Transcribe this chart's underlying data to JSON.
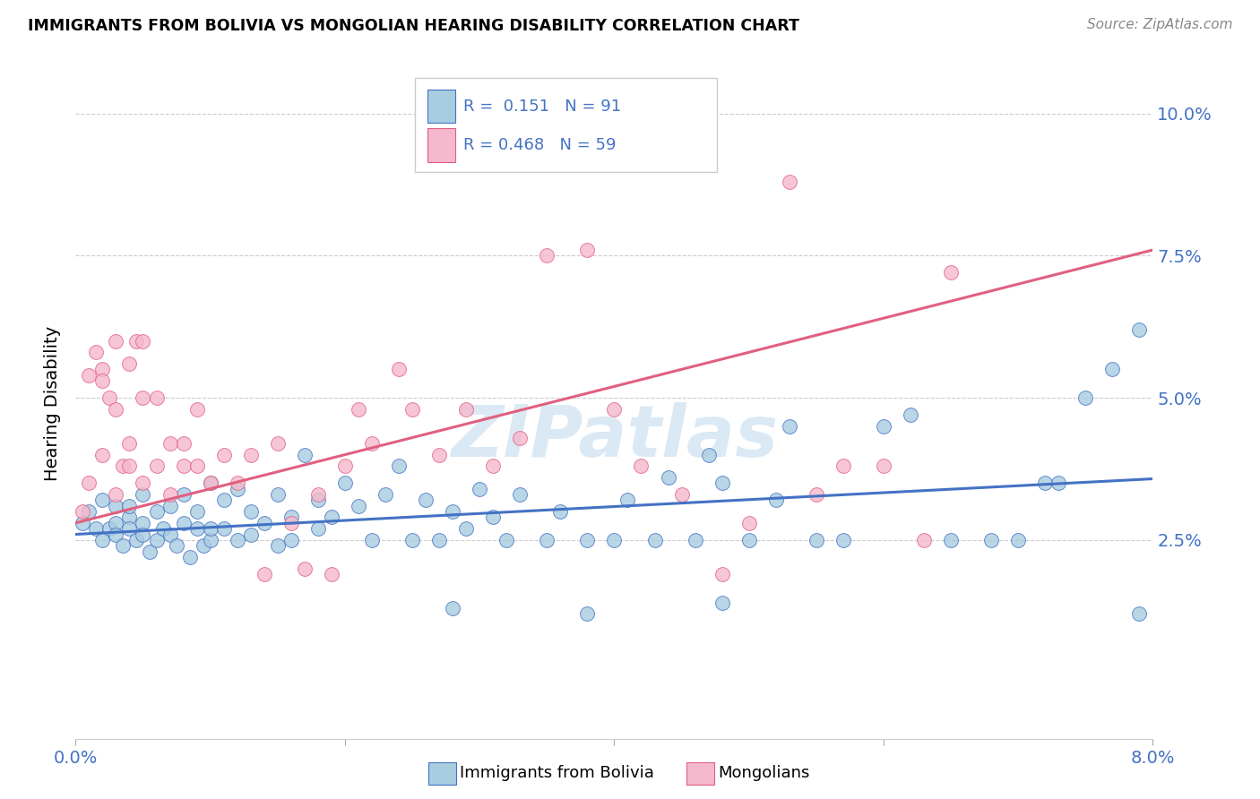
{
  "title": "IMMIGRANTS FROM BOLIVIA VS MONGOLIAN HEARING DISABILITY CORRELATION CHART",
  "source": "Source: ZipAtlas.com",
  "ylabel": "Hearing Disability",
  "legend_label1": "Immigrants from Bolivia",
  "legend_label2": "Mongolians",
  "R1": "0.151",
  "N1": "91",
  "R2": "0.468",
  "N2": "59",
  "color_blue": "#a8cce0",
  "color_pink": "#f5b8cc",
  "line_color_blue": "#4472c4",
  "line_color_pink": "#e06080",
  "tick_color": "#4472c4",
  "watermark_color": "#b8d4ea",
  "xlim": [
    0.0,
    0.08
  ],
  "ylim": [
    -0.01,
    0.108
  ],
  "yticks": [
    0.025,
    0.05,
    0.075,
    0.1
  ],
  "ytick_labels": [
    "2.5%",
    "5.0%",
    "7.5%",
    "10.0%"
  ],
  "blue_slope": 0.122,
  "blue_intercept": 0.026,
  "pink_slope": 0.6,
  "pink_intercept": 0.028,
  "blue_x": [
    0.0005,
    0.001,
    0.0015,
    0.002,
    0.002,
    0.0025,
    0.003,
    0.003,
    0.003,
    0.0035,
    0.004,
    0.004,
    0.004,
    0.0045,
    0.005,
    0.005,
    0.005,
    0.0055,
    0.006,
    0.006,
    0.0065,
    0.007,
    0.007,
    0.0075,
    0.008,
    0.008,
    0.0085,
    0.009,
    0.009,
    0.0095,
    0.01,
    0.01,
    0.01,
    0.011,
    0.011,
    0.012,
    0.012,
    0.013,
    0.013,
    0.014,
    0.015,
    0.015,
    0.016,
    0.016,
    0.017,
    0.018,
    0.018,
    0.019,
    0.02,
    0.021,
    0.022,
    0.023,
    0.024,
    0.025,
    0.026,
    0.027,
    0.028,
    0.029,
    0.03,
    0.031,
    0.032,
    0.033,
    0.035,
    0.036,
    0.038,
    0.04,
    0.041,
    0.043,
    0.044,
    0.046,
    0.047,
    0.048,
    0.05,
    0.052,
    0.053,
    0.055,
    0.057,
    0.06,
    0.062,
    0.065,
    0.068,
    0.07,
    0.072,
    0.075,
    0.077,
    0.079,
    0.079,
    0.048,
    0.028,
    0.038,
    0.073
  ],
  "blue_y": [
    0.028,
    0.03,
    0.027,
    0.032,
    0.025,
    0.027,
    0.028,
    0.031,
    0.026,
    0.024,
    0.029,
    0.027,
    0.031,
    0.025,
    0.033,
    0.028,
    0.026,
    0.023,
    0.03,
    0.025,
    0.027,
    0.031,
    0.026,
    0.024,
    0.033,
    0.028,
    0.022,
    0.03,
    0.027,
    0.024,
    0.035,
    0.025,
    0.027,
    0.032,
    0.027,
    0.034,
    0.025,
    0.03,
    0.026,
    0.028,
    0.033,
    0.024,
    0.029,
    0.025,
    0.04,
    0.032,
    0.027,
    0.029,
    0.035,
    0.031,
    0.025,
    0.033,
    0.038,
    0.025,
    0.032,
    0.025,
    0.03,
    0.027,
    0.034,
    0.029,
    0.025,
    0.033,
    0.025,
    0.03,
    0.025,
    0.025,
    0.032,
    0.025,
    0.036,
    0.025,
    0.04,
    0.035,
    0.025,
    0.032,
    0.045,
    0.025,
    0.025,
    0.045,
    0.047,
    0.025,
    0.025,
    0.025,
    0.035,
    0.05,
    0.055,
    0.062,
    0.012,
    0.014,
    0.013,
    0.012,
    0.035
  ],
  "pink_x": [
    0.0005,
    0.001,
    0.001,
    0.0015,
    0.002,
    0.002,
    0.002,
    0.0025,
    0.003,
    0.003,
    0.003,
    0.0035,
    0.004,
    0.004,
    0.004,
    0.0045,
    0.005,
    0.005,
    0.005,
    0.006,
    0.006,
    0.007,
    0.007,
    0.008,
    0.008,
    0.009,
    0.009,
    0.01,
    0.011,
    0.012,
    0.013,
    0.014,
    0.015,
    0.016,
    0.017,
    0.018,
    0.019,
    0.02,
    0.021,
    0.022,
    0.024,
    0.025,
    0.027,
    0.029,
    0.031,
    0.033,
    0.035,
    0.038,
    0.04,
    0.042,
    0.045,
    0.048,
    0.05,
    0.053,
    0.055,
    0.057,
    0.06,
    0.063,
    0.065
  ],
  "pink_y": [
    0.03,
    0.054,
    0.035,
    0.058,
    0.055,
    0.053,
    0.04,
    0.05,
    0.06,
    0.048,
    0.033,
    0.038,
    0.056,
    0.038,
    0.042,
    0.06,
    0.06,
    0.05,
    0.035,
    0.05,
    0.038,
    0.042,
    0.033,
    0.042,
    0.038,
    0.038,
    0.048,
    0.035,
    0.04,
    0.035,
    0.04,
    0.019,
    0.042,
    0.028,
    0.02,
    0.033,
    0.019,
    0.038,
    0.048,
    0.042,
    0.055,
    0.048,
    0.04,
    0.048,
    0.038,
    0.043,
    0.075,
    0.076,
    0.048,
    0.038,
    0.033,
    0.019,
    0.028,
    0.088,
    0.033,
    0.038,
    0.038,
    0.025,
    0.072
  ]
}
